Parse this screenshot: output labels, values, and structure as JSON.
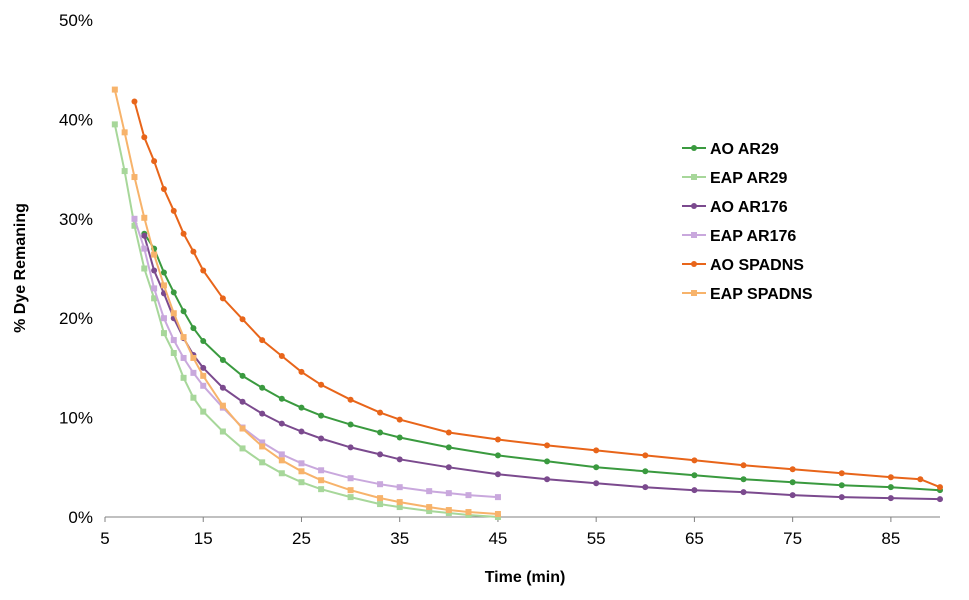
{
  "chart_data": {
    "type": "line",
    "xlabel": "Time (min)",
    "ylabel": "% Dye Remaning",
    "xlim": [
      5,
      90
    ],
    "ylim": [
      0,
      50
    ],
    "x_ticks": [
      "5",
      "15",
      "25",
      "35",
      "45",
      "55",
      "65",
      "75",
      "85"
    ],
    "y_ticks": [
      "0%",
      "10%",
      "20%",
      "30%",
      "40%",
      "50%"
    ],
    "grid": false,
    "legend_position": "right",
    "series": [
      {
        "name": "AO AR29",
        "color": "#3a9a3f",
        "marker": "circle",
        "x": [
          9,
          10,
          11,
          12,
          13,
          14,
          15,
          17,
          19,
          21,
          23,
          25,
          27,
          30,
          33,
          35,
          40,
          45,
          50,
          55,
          60,
          65,
          70,
          75,
          80,
          85,
          90
        ],
        "y": [
          28.5,
          27.0,
          24.6,
          22.6,
          20.7,
          19.0,
          17.7,
          15.8,
          14.2,
          13.0,
          11.9,
          11.0,
          10.2,
          9.3,
          8.5,
          8.0,
          7.0,
          6.2,
          5.6,
          5.0,
          4.6,
          4.2,
          3.8,
          3.5,
          3.2,
          3.0,
          2.7
        ]
      },
      {
        "name": "EAP AR29",
        "color": "#a7d79a",
        "marker": "square",
        "x": [
          6,
          7,
          8,
          9,
          10,
          11,
          12,
          13,
          14,
          15,
          17,
          19,
          21,
          23,
          25,
          27,
          30,
          33,
          35,
          38,
          40,
          42,
          45
        ],
        "y": [
          39.5,
          34.8,
          29.3,
          25.0,
          22.0,
          18.5,
          16.5,
          14.0,
          12.0,
          10.6,
          8.6,
          6.9,
          5.5,
          4.4,
          3.5,
          2.8,
          2.0,
          1.3,
          1.0,
          0.6,
          0.4,
          0.2,
          0.0
        ]
      },
      {
        "name": "AO AR176",
        "color": "#7b4a8e",
        "marker": "circle",
        "x": [
          9,
          10,
          11,
          12,
          13,
          14,
          15,
          17,
          19,
          21,
          23,
          25,
          27,
          30,
          33,
          35,
          40,
          45,
          50,
          55,
          60,
          65,
          70,
          75,
          80,
          85,
          90
        ],
        "y": [
          28.3,
          24.8,
          22.5,
          20.0,
          18.0,
          16.3,
          15.0,
          13.0,
          11.6,
          10.4,
          9.4,
          8.6,
          7.9,
          7.0,
          6.3,
          5.8,
          5.0,
          4.3,
          3.8,
          3.4,
          3.0,
          2.7,
          2.5,
          2.2,
          2.0,
          1.9,
          1.8
        ]
      },
      {
        "name": "EAP AR176",
        "color": "#c9a8dd",
        "marker": "square",
        "x": [
          8,
          9,
          10,
          11,
          12,
          13,
          14,
          15,
          17,
          19,
          21,
          23,
          25,
          27,
          30,
          33,
          35,
          38,
          40,
          42,
          45
        ],
        "y": [
          30.0,
          27.0,
          23.0,
          20.0,
          17.8,
          16.0,
          14.5,
          13.2,
          11.0,
          9.0,
          7.5,
          6.3,
          5.4,
          4.7,
          3.9,
          3.3,
          3.0,
          2.6,
          2.4,
          2.2,
          2.0
        ]
      },
      {
        "name": "AO SPADNS",
        "color": "#e8651a",
        "marker": "circle",
        "x": [
          8,
          9,
          10,
          11,
          12,
          13,
          14,
          15,
          17,
          19,
          21,
          23,
          25,
          27,
          30,
          33,
          35,
          40,
          45,
          50,
          55,
          60,
          65,
          70,
          75,
          80,
          85,
          88,
          90
        ],
        "y": [
          41.8,
          38.2,
          35.8,
          33.0,
          30.8,
          28.5,
          26.7,
          24.8,
          22.0,
          19.9,
          17.8,
          16.2,
          14.6,
          13.3,
          11.8,
          10.5,
          9.8,
          8.5,
          7.8,
          7.2,
          6.7,
          6.2,
          5.7,
          5.2,
          4.8,
          4.4,
          4.0,
          3.8,
          3.0
        ]
      },
      {
        "name": "EAP SPADNS",
        "color": "#f7b36b",
        "marker": "square",
        "x": [
          6,
          7,
          8,
          9,
          10,
          11,
          12,
          13,
          14,
          15,
          17,
          19,
          21,
          23,
          25,
          27,
          30,
          33,
          35,
          38,
          40,
          42,
          45
        ],
        "y": [
          43.0,
          38.7,
          34.2,
          30.1,
          26.4,
          23.3,
          20.5,
          18.1,
          16.0,
          14.2,
          11.2,
          8.9,
          7.1,
          5.7,
          4.6,
          3.7,
          2.7,
          1.9,
          1.5,
          1.0,
          0.7,
          0.5,
          0.3
        ]
      }
    ]
  }
}
